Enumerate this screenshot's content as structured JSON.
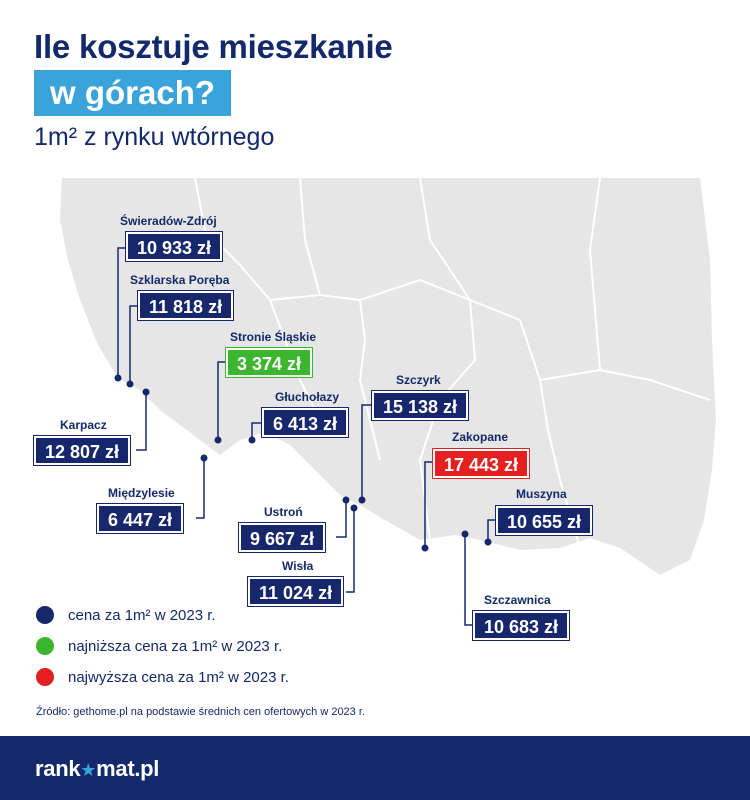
{
  "header": {
    "title_line1": "Ile kosztuje mieszkanie",
    "title_line2": "w górach?",
    "subtitle": "1m² z rynku wtórnego"
  },
  "colors": {
    "navy": "#16286b",
    "highlight": "#3aa3d9",
    "green": "#3cb62e",
    "red": "#e52020",
    "map_fill": "#e6e6e6",
    "map_border": "#ffffff"
  },
  "cities": [
    {
      "name": "Świeradów-Zdrój",
      "price": "10 933 zł",
      "type": "normal"
    },
    {
      "name": "Szklarska Poręba",
      "price": "11 818 zł",
      "type": "normal"
    },
    {
      "name": "Stronie Śląskie",
      "price": "3 374 zł",
      "type": "lowest"
    },
    {
      "name": "Karpacz",
      "price": "12 807 zł",
      "type": "normal"
    },
    {
      "name": "Głuchołazy",
      "price": "6 413 zł",
      "type": "normal"
    },
    {
      "name": "Szczyrk",
      "price": "15 138 zł",
      "type": "normal"
    },
    {
      "name": "Zakopane",
      "price": "17 443 zł",
      "type": "highest"
    },
    {
      "name": "Międzylesie",
      "price": "6 447 zł",
      "type": "normal"
    },
    {
      "name": "Ustroń",
      "price": "9 667 zł",
      "type": "normal"
    },
    {
      "name": "Muszyna",
      "price": "10 655 zł",
      "type": "normal"
    },
    {
      "name": "Wisła",
      "price": "11 024 zł",
      "type": "normal"
    },
    {
      "name": "Szczawnica",
      "price": "10 683 zł",
      "type": "normal"
    }
  ],
  "legend": [
    {
      "label": "cena za 1m² w 2023 r.",
      "color": "#16286b"
    },
    {
      "label": "najniższa cena za 1m² w 2023 r.",
      "color": "#3cb62e"
    },
    {
      "label": "najwyższa cena za 1m² w 2023 r.",
      "color": "#e52020"
    }
  ],
  "source": "Źródło: gethome.pl na podstawie średnich cen ofertowych w 2023 r.",
  "footer": {
    "logo_part1": "rank",
    "logo_star": "★",
    "logo_part2": "mat.pl"
  }
}
